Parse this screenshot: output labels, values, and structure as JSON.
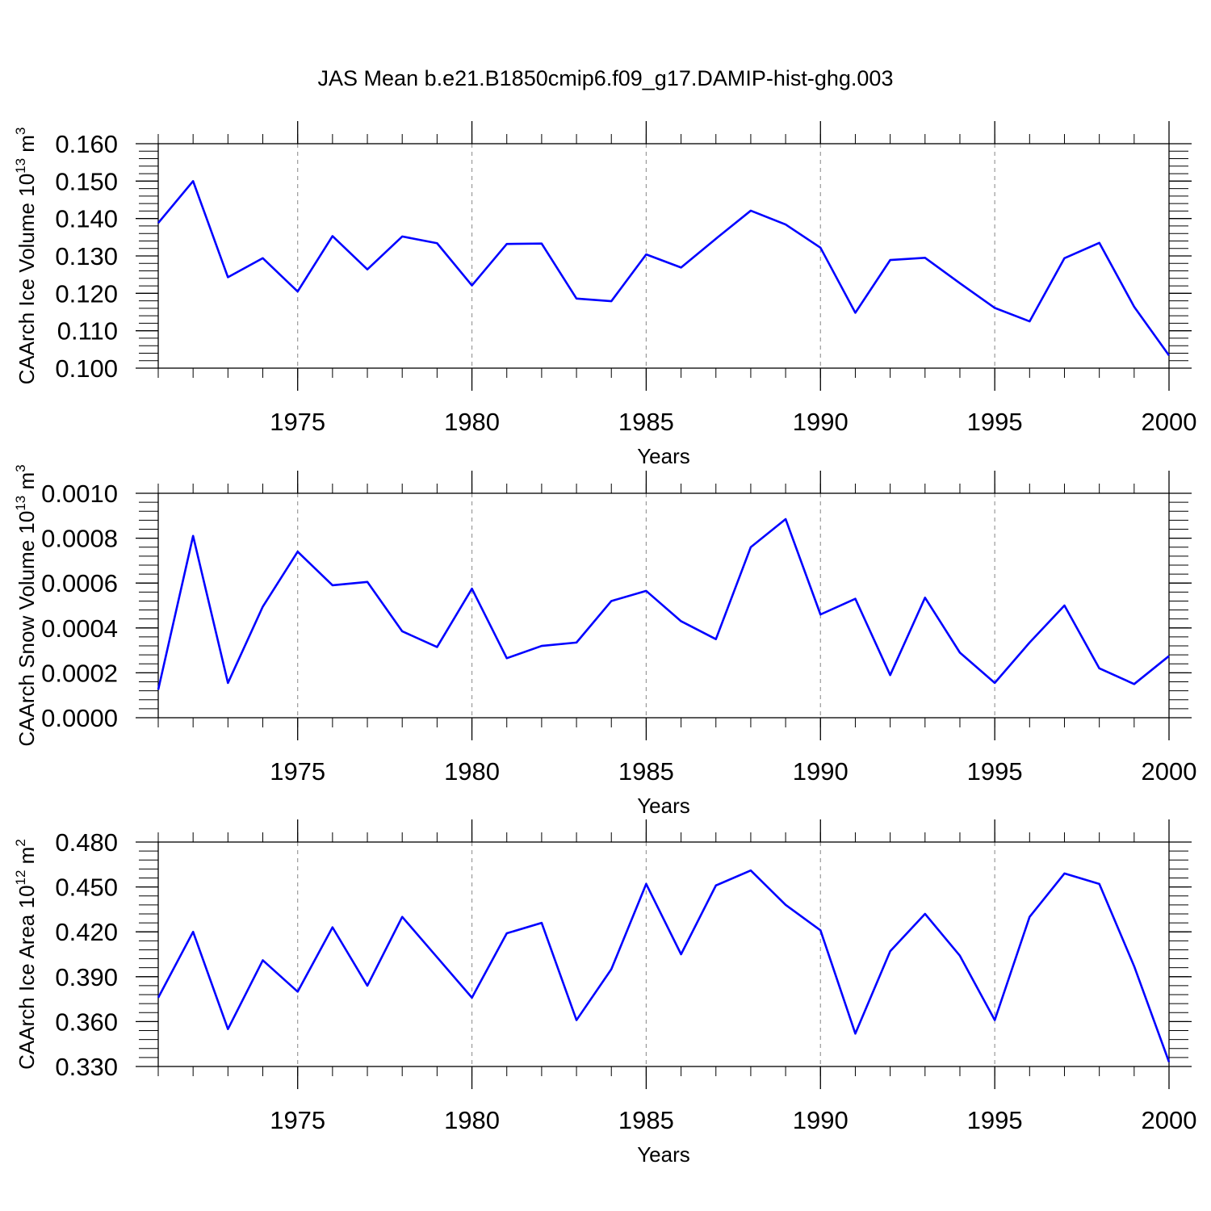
{
  "title": "JAS Mean b.e21.B1850cmip6.f09_g17.DAMIP-hist-ghg.003",
  "colors": {
    "line": "#0000ff",
    "axis": "#000000",
    "grid": "#999999"
  },
  "chart_data": [
    {
      "type": "line",
      "xlabel": "Years",
      "ylabel_main": "CAArch Ice Volume 10",
      "ylabel_exp": "13",
      "ylabel_unit": " m",
      "ylabel_unit_exp": "3",
      "xlim": [
        1971,
        2000
      ],
      "ylim": [
        0.1,
        0.16
      ],
      "xticks": [
        1975,
        1980,
        1985,
        1990,
        1995,
        2000
      ],
      "yticks": [
        "0.100",
        "0.110",
        "0.120",
        "0.130",
        "0.140",
        "0.150",
        "0.160"
      ],
      "grid": "vertical-dashed",
      "series": [
        {
          "x": [
            1971,
            1972,
            1973,
            1974,
            1975,
            1976,
            1977,
            1978,
            1979,
            1980,
            1981,
            1982,
            1983,
            1984,
            1985,
            1986,
            1987,
            1988,
            1989,
            1990,
            1991,
            1992,
            1993,
            1994,
            1995,
            1996,
            1997,
            1998,
            1999,
            2000
          ],
          "values": [
            0.1388,
            0.15,
            0.1243,
            0.1294,
            0.1205,
            0.1353,
            0.1264,
            0.1352,
            0.1334,
            0.1221,
            0.1332,
            0.1333,
            0.1186,
            0.1179,
            0.1304,
            0.1269,
            0.1346,
            0.1421,
            0.1384,
            0.1322,
            0.1148,
            0.1289,
            0.1295,
            0.1227,
            0.1161,
            0.1125,
            0.1294,
            0.1335,
            0.1164,
            0.1034
          ]
        }
      ]
    },
    {
      "type": "line",
      "xlabel": "Years",
      "ylabel_main": "CAArch Snow Volume 10",
      "ylabel_exp": "13",
      "ylabel_unit": " m",
      "ylabel_unit_exp": "3",
      "xlim": [
        1971,
        2000
      ],
      "ylim": [
        0.0,
        0.001
      ],
      "xticks": [
        1975,
        1980,
        1985,
        1990,
        1995,
        2000
      ],
      "yticks": [
        "0.0000",
        "0.0002",
        "0.0004",
        "0.0006",
        "0.0008",
        "0.0010"
      ],
      "grid": "vertical-dashed",
      "series": [
        {
          "x": [
            1971,
            1972,
            1973,
            1974,
            1975,
            1976,
            1977,
            1978,
            1979,
            1980,
            1981,
            1982,
            1983,
            1984,
            1985,
            1986,
            1987,
            1988,
            1989,
            1990,
            1991,
            1992,
            1993,
            1994,
            1995,
            1996,
            1997,
            1998,
            1999,
            2000
          ],
          "values": [
            0.000125,
            0.00081,
            0.000155,
            0.000495,
            0.00074,
            0.00059,
            0.000605,
            0.000385,
            0.000315,
            0.000575,
            0.000265,
            0.00032,
            0.000335,
            0.00052,
            0.000565,
            0.00043,
            0.00035,
            0.00076,
            0.000885,
            0.00046,
            0.00053,
            0.00019,
            0.000535,
            0.00029,
            0.000155,
            0.000335,
            0.0005,
            0.00022,
            0.00015,
            0.000275
          ]
        }
      ]
    },
    {
      "type": "line",
      "xlabel": "Years",
      "ylabel_main": "CAArch Ice Area 10",
      "ylabel_exp": "12",
      "ylabel_unit": " m",
      "ylabel_unit_exp": "2",
      "xlim": [
        1971,
        2000
      ],
      "ylim": [
        0.33,
        0.48
      ],
      "xticks": [
        1975,
        1980,
        1985,
        1990,
        1995,
        2000
      ],
      "yticks": [
        "0.330",
        "0.360",
        "0.390",
        "0.420",
        "0.450",
        "0.480"
      ],
      "grid": "vertical-dashed",
      "series": [
        {
          "x": [
            1971,
            1972,
            1973,
            1974,
            1975,
            1976,
            1977,
            1978,
            1979,
            1980,
            1981,
            1982,
            1983,
            1984,
            1985,
            1986,
            1987,
            1988,
            1989,
            1990,
            1991,
            1992,
            1993,
            1994,
            1995,
            1996,
            1997,
            1998,
            1999,
            2000
          ],
          "values": [
            0.376,
            0.42,
            0.355,
            0.401,
            0.38,
            0.423,
            0.384,
            0.43,
            0.403,
            0.376,
            0.419,
            0.426,
            0.361,
            0.395,
            0.452,
            0.405,
            0.451,
            0.461,
            0.438,
            0.421,
            0.352,
            0.407,
            0.432,
            0.404,
            0.361,
            0.43,
            0.459,
            0.452,
            0.397,
            0.333
          ]
        }
      ]
    }
  ]
}
